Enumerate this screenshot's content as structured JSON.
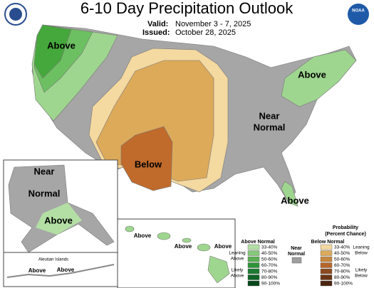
{
  "header": {
    "title": "6-10 Day Precipitation Outlook",
    "valid_label": "Valid:",
    "valid": "November 3 - 7, 2025",
    "issued_label": "Issued:",
    "issued": "October 28, 2025",
    "logo": "NOAA"
  },
  "conus_labels": [
    [
      "Above"
    ],
    [
      "Above"
    ],
    [
      "Near",
      "Normal"
    ],
    [
      "Below"
    ],
    [
      "Above"
    ]
  ],
  "alaska_labels": [
    [
      "Near",
      "Normal"
    ],
    [
      "Above"
    ]
  ],
  "aleutian_title": "Aleutian Islands",
  "aleutian_labels": [
    "Above",
    "Above"
  ],
  "hawaii_labels": [
    "Above",
    "Above",
    "Above"
  ],
  "legend": {
    "title": [
      "Probability",
      "(Percent Chance)"
    ],
    "above_heading": "Above Normal",
    "below_heading": "Below Normal",
    "near": [
      "Near",
      "Normal"
    ],
    "near_color": "#9e9e9e",
    "leaning_above": [
      "Leaning",
      "Above"
    ],
    "likely_above": [
      "Likely",
      "Above"
    ],
    "leaning_below": [
      "Leaning",
      "Below"
    ],
    "likely_below": [
      "Likely",
      "Below"
    ],
    "ranges": [
      "33-40%",
      "40-50%",
      "50-60%",
      "60-70%",
      "70-80%",
      "80-90%",
      "90-100%"
    ],
    "above_colors": [
      "#b3dfa5",
      "#87c97b",
      "#5aaf52",
      "#2d9438",
      "#1c7a31",
      "#0e6325",
      "#07461a"
    ],
    "below_colors": [
      "#f4d9a0",
      "#ddaa5a",
      "#c7873c",
      "#b7652a",
      "#8c4a1f",
      "#6b3515",
      "#4a2410"
    ]
  }
}
